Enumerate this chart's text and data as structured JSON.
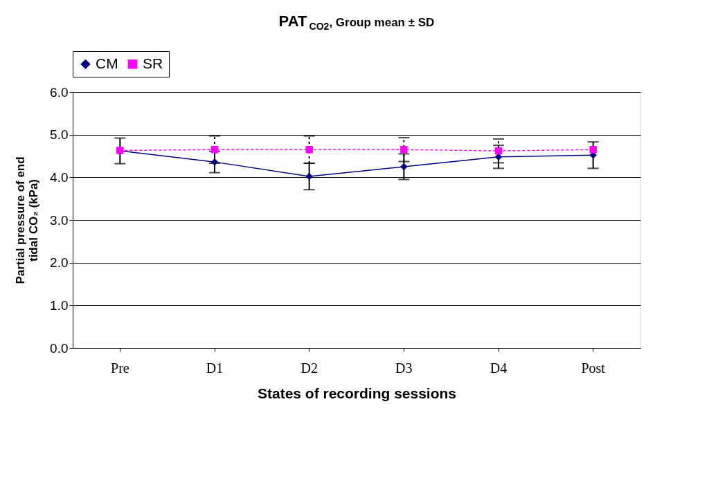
{
  "chart_data": {
    "type": "line",
    "title": "PAT$_{CO2}$, Group mean ± SD",
    "xlabel": "States of recording sessions",
    "ylabel": "Partial pressure of end tidal CO₂ (kPa)",
    "categories": [
      "Pre",
      "D1",
      "D2",
      "D3",
      "D4",
      "Post"
    ],
    "series": [
      {
        "name": "CM",
        "color": "#000080",
        "marker": "diamond",
        "line_style": "solid",
        "values": [
          4.62,
          4.36,
          4.02,
          4.25,
          4.48,
          4.52
        ],
        "errors": [
          0.3,
          0.25,
          0.31,
          0.3,
          0.27,
          0.31
        ]
      },
      {
        "name": "SR",
        "color": "#ff00ff",
        "marker": "square",
        "line_style": "dashed",
        "values": [
          4.63,
          4.65,
          4.65,
          4.65,
          4.62,
          4.65
        ],
        "errors": [
          null,
          0.32,
          0.32,
          0.28,
          0.28,
          null
        ]
      }
    ],
    "ylim": [
      0,
      6
    ],
    "yticks": [
      {
        "value": 0,
        "label": "0.0"
      },
      {
        "value": 1,
        "label": "1.0"
      },
      {
        "value": 2,
        "label": "2.0"
      },
      {
        "value": 3,
        "label": "3.0"
      },
      {
        "value": 4,
        "label": "4.0"
      },
      {
        "value": 5,
        "label": "5.0"
      },
      {
        "value": 6,
        "label": "6.0"
      }
    ],
    "grid": "y",
    "legend": "top"
  }
}
